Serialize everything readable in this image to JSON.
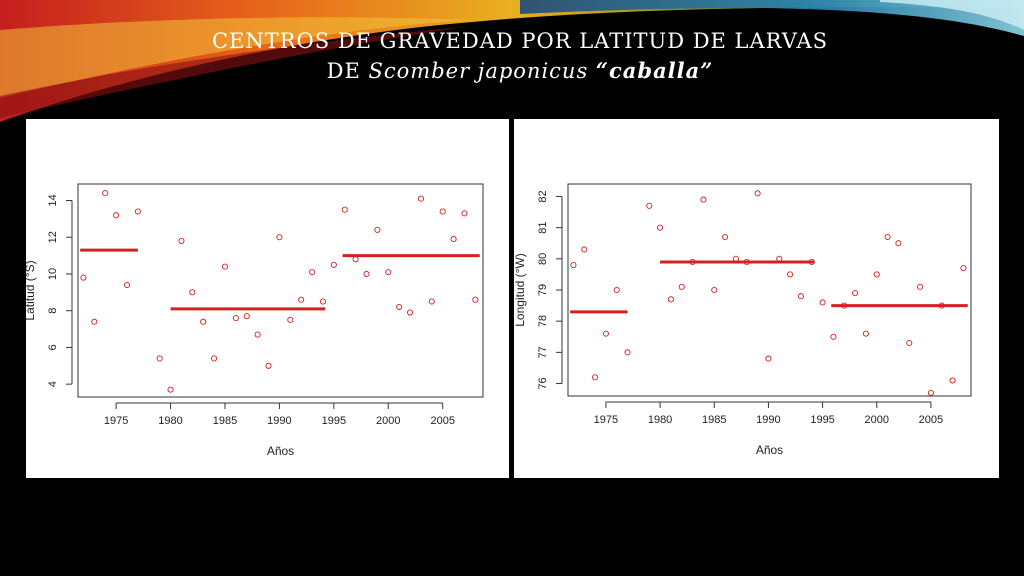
{
  "slide": {
    "title_line1": "CENTROS DE GRAVEDAD POR LATITUD DE LARVAS",
    "title_line2_prefix": "DE",
    "species": "Scomber japonicus",
    "common_name": "“caballa”"
  },
  "colors": {
    "points": "#d62020",
    "mean_lines": "#d62020",
    "background": "#000000",
    "panel": "#ffffff"
  },
  "chart_data": [
    {
      "type": "scatter",
      "xlabel": "Años",
      "ylabel": "Latitud (°S)",
      "xlim": [
        1971.5,
        2008.7
      ],
      "ylim": [
        14.9,
        3.3
      ],
      "y_inverted": true,
      "xticks": [
        1975,
        1980,
        1985,
        1990,
        1995,
        2000,
        2005
      ],
      "yticks": [
        4,
        6,
        8,
        10,
        12,
        14
      ],
      "series": [
        {
          "x": [
            1972,
            1973,
            1974,
            1975,
            1976,
            1977,
            1979,
            1980,
            1981,
            1982,
            1983,
            1984,
            1985,
            1986,
            1987,
            1988,
            1989,
            1990,
            1991,
            1992,
            1993,
            1994,
            1995,
            1996,
            1997,
            1998,
            1999,
            2000,
            2001,
            2002,
            2003,
            2004,
            2005,
            2006,
            2007,
            2008
          ],
          "y": [
            9.8,
            7.4,
            14.4,
            13.2,
            9.4,
            13.4,
            5.4,
            3.7,
            11.8,
            9.0,
            7.4,
            5.4,
            10.4,
            7.6,
            7.7,
            6.7,
            5.0,
            12.0,
            7.5,
            8.6,
            10.1,
            8.5,
            10.5,
            13.5,
            10.8,
            10.0,
            12.4,
            10.1,
            8.2,
            7.9,
            14.1,
            8.5,
            13.4,
            11.9,
            13.3,
            8.6
          ]
        }
      ],
      "mean_segments": [
        {
          "x": [
            1971.7,
            1977.0
          ],
          "y": 11.3
        },
        {
          "x": [
            1980.0,
            1994.2
          ],
          "y": 8.1
        },
        {
          "x": [
            1995.8,
            2008.4
          ],
          "y": 11.0
        }
      ]
    },
    {
      "type": "scatter",
      "xlabel": "Años",
      "ylabel": "Longitud (°W)",
      "xlim": [
        1971.5,
        2008.7
      ],
      "ylim": [
        82.4,
        75.6
      ],
      "y_inverted": true,
      "xticks": [
        1975,
        1980,
        1985,
        1990,
        1995,
        2000,
        2005
      ],
      "yticks": [
        76,
        77,
        78,
        79,
        80,
        81,
        82
      ],
      "series": [
        {
          "x": [
            1972,
            1973,
            1974,
            1975,
            1976,
            1977,
            1979,
            1980,
            1981,
            1982,
            1983,
            1984,
            1985,
            1986,
            1987,
            1988,
            1989,
            1990,
            1991,
            1992,
            1993,
            1994,
            1995,
            1996,
            1997,
            1998,
            1999,
            2000,
            2001,
            2002,
            2003,
            2004,
            2005,
            2006,
            2007,
            2008
          ],
          "y": [
            79.8,
            80.3,
            76.2,
            77.6,
            79.0,
            77.0,
            81.7,
            81.0,
            78.7,
            79.1,
            79.9,
            81.9,
            79.0,
            80.7,
            80.0,
            79.9,
            82.1,
            76.8,
            80.0,
            79.5,
            78.8,
            79.9,
            78.6,
            77.5,
            78.5,
            78.9,
            77.6,
            79.5,
            80.7,
            80.5,
            77.3,
            79.1,
            75.7,
            78.5,
            76.1,
            79.7
          ]
        }
      ],
      "mean_segments": [
        {
          "x": [
            1971.7,
            1977.0
          ],
          "y": 78.3
        },
        {
          "x": [
            1980.0,
            1994.2
          ],
          "y": 79.9
        },
        {
          "x": [
            1995.8,
            2008.4
          ],
          "y": 78.5
        }
      ]
    }
  ]
}
